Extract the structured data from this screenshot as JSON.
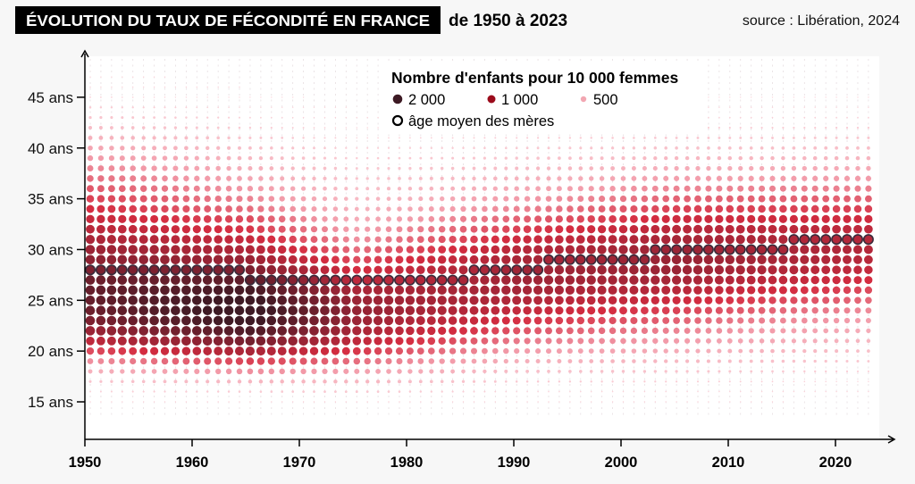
{
  "header": {
    "title": "ÉVOLUTION DU TAUX DE FÉCONDITÉ EN FRANCE",
    "subtitle": "de 1950 à 2023",
    "source": "source : Libération, 2024"
  },
  "legend": {
    "title": "Nombre d'enfants pour 10 000 femmes",
    "sizes": [
      {
        "label": "2 000",
        "value": 2000
      },
      {
        "label": "1 000",
        "value": 1000
      },
      {
        "label": "500",
        "value": 500
      }
    ],
    "mean_age_label": "âge moyen des mères"
  },
  "colors": {
    "background": "#f7f7f7",
    "plot": "#ffffff",
    "scale": [
      "#fbd3da",
      "#f29aa8",
      "#d42c40",
      "#8c2232",
      "#3d1a24"
    ],
    "mean_age_ring": "#3a2a3a"
  },
  "chart_data": {
    "type": "scatter",
    "title": "Évolution du taux de fécondité en France de 1950 à 2023",
    "xlabel": "",
    "ylabel": "",
    "x_range": [
      1950,
      2023
    ],
    "y_range": [
      15,
      49
    ],
    "x_ticks": [
      "1950",
      "1960",
      "1970",
      "1980",
      "1990",
      "2000",
      "2010",
      "2020"
    ],
    "x_tick_values": [
      1950,
      1960,
      1970,
      1980,
      1990,
      2000,
      2010,
      2020
    ],
    "y_ticks": [
      "15 ans",
      "20 ans",
      "25 ans",
      "30 ans",
      "35 ans",
      "40 ans",
      "45 ans"
    ],
    "y_tick_values": [
      15,
      20,
      25,
      30,
      35,
      40,
      45
    ],
    "unit": "births per 10 000 women, by age and year (approximate, keyframe years; intermediate years interpolated)",
    "ages": [
      15,
      16,
      17,
      18,
      19,
      20,
      21,
      22,
      23,
      24,
      25,
      26,
      27,
      28,
      29,
      30,
      31,
      32,
      33,
      34,
      35,
      36,
      37,
      38,
      39,
      40,
      41,
      42,
      43,
      44,
      45,
      46,
      47,
      48,
      49
    ],
    "keyframes": [
      {
        "year": 1950,
        "values": [
          10,
          40,
          120,
          300,
          550,
          850,
          1150,
          1400,
          1600,
          1700,
          1750,
          1750,
          1700,
          1600,
          1500,
          1400,
          1300,
          1200,
          1100,
          1000,
          900,
          800,
          700,
          600,
          500,
          400,
          300,
          200,
          130,
          80,
          40,
          20,
          10,
          5,
          2
        ]
      },
      {
        "year": 1965,
        "values": [
          20,
          80,
          250,
          550,
          900,
          1300,
          1650,
          1900,
          2050,
          2100,
          2050,
          1950,
          1800,
          1600,
          1400,
          1250,
          1100,
          950,
          850,
          700,
          600,
          500,
          400,
          320,
          250,
          180,
          120,
          70,
          40,
          20,
          10,
          5,
          2,
          1,
          0
        ]
      },
      {
        "year": 1975,
        "values": [
          30,
          100,
          250,
          450,
          700,
          950,
          1150,
          1300,
          1400,
          1450,
          1400,
          1300,
          1150,
          1000,
          850,
          700,
          550,
          450,
          350,
          280,
          220,
          170,
          130,
          100,
          70,
          50,
          30,
          20,
          10,
          5,
          2,
          1,
          0,
          0,
          0
        ]
      },
      {
        "year": 1990,
        "values": [
          10,
          30,
          80,
          180,
          320,
          480,
          650,
          820,
          980,
          1120,
          1250,
          1330,
          1370,
          1360,
          1300,
          1200,
          1050,
          900,
          750,
          600,
          480,
          370,
          280,
          200,
          140,
          90,
          55,
          30,
          15,
          8,
          4,
          2,
          1,
          0,
          0
        ]
      },
      {
        "year": 2005,
        "values": [
          10,
          25,
          60,
          130,
          230,
          350,
          480,
          600,
          750,
          900,
          1050,
          1200,
          1320,
          1400,
          1420,
          1400,
          1320,
          1200,
          1050,
          900,
          750,
          600,
          460,
          340,
          240,
          160,
          100,
          55,
          30,
          15,
          8,
          4,
          2,
          1,
          0
        ]
      },
      {
        "year": 2023,
        "values": [
          3,
          8,
          20,
          50,
          100,
          170,
          250,
          340,
          450,
          570,
          720,
          860,
          1000,
          1120,
          1200,
          1230,
          1220,
          1150,
          1030,
          900,
          760,
          620,
          480,
          360,
          260,
          180,
          110,
          65,
          35,
          18,
          9,
          4,
          2,
          1,
          0
        ]
      }
    ],
    "mean_age": [
      {
        "from": 1950,
        "to": 1964,
        "age": 28
      },
      {
        "from": 1965,
        "to": 1985,
        "age": 27
      },
      {
        "from": 1986,
        "to": 1992,
        "age": 28
      },
      {
        "from": 1993,
        "to": 2002,
        "age": 29
      },
      {
        "from": 2003,
        "to": 2015,
        "age": 30
      },
      {
        "from": 2016,
        "to": 2023,
        "age": 31
      }
    ]
  }
}
